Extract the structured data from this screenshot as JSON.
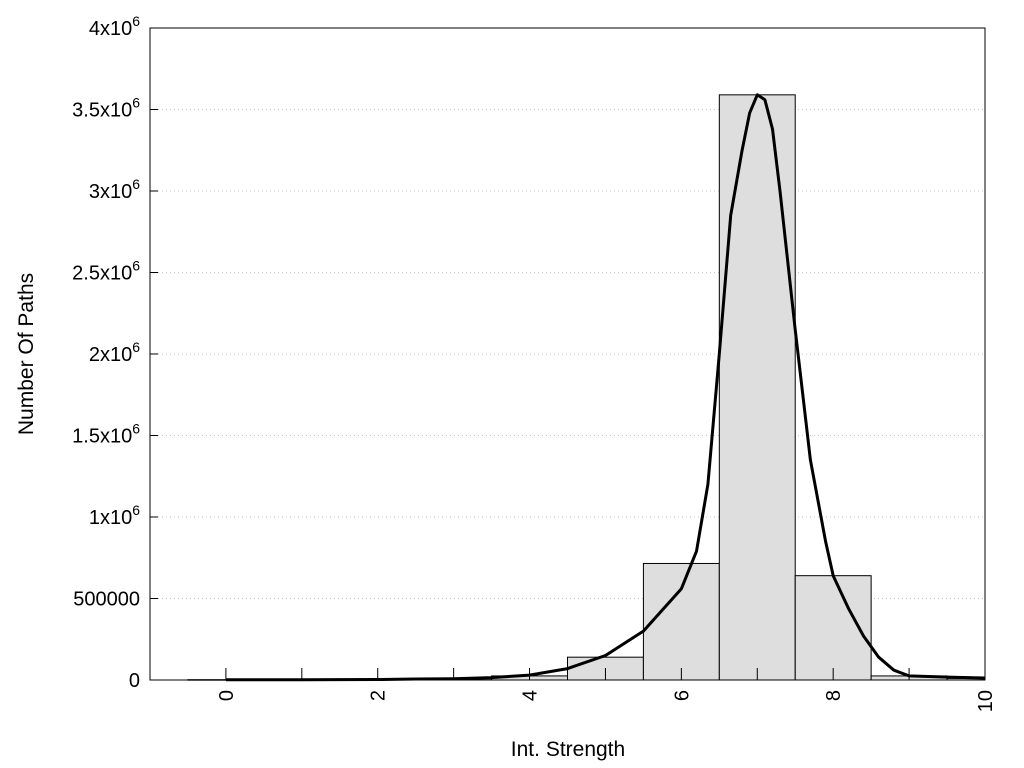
{
  "chart_data": {
    "type": "bar",
    "title": "",
    "xlabel": "Int. Strength",
    "ylabel": "Number Of Paths",
    "xlim": [
      -1,
      10
    ],
    "ylim": [
      0,
      4000000
    ],
    "grid": "horizontal dotted",
    "legend": "none",
    "x_ticks": [
      0,
      2,
      4,
      6,
      8,
      10
    ],
    "y_ticks": [
      {
        "value": 0,
        "base": "0",
        "exp": ""
      },
      {
        "value": 500000,
        "base": "500000",
        "exp": ""
      },
      {
        "value": 1000000,
        "base": "1x10",
        "exp": "6"
      },
      {
        "value": 1500000,
        "base": "1.5x10",
        "exp": "6"
      },
      {
        "value": 2000000,
        "base": "2x10",
        "exp": "6"
      },
      {
        "value": 2500000,
        "base": "2.5x10",
        "exp": "6"
      },
      {
        "value": 3000000,
        "base": "3x10",
        "exp": "6"
      },
      {
        "value": 3500000,
        "base": "3.5x10",
        "exp": "6"
      },
      {
        "value": 4000000,
        "base": "4x10",
        "exp": "6"
      }
    ],
    "bin_width": 1,
    "bars": [
      {
        "x": 0,
        "y": 2000
      },
      {
        "x": 1,
        "y": 3000
      },
      {
        "x": 2,
        "y": 5000
      },
      {
        "x": 3,
        "y": 8000
      },
      {
        "x": 4,
        "y": 25000
      },
      {
        "x": 5,
        "y": 140000
      },
      {
        "x": 6,
        "y": 715000
      },
      {
        "x": 7,
        "y": 3590000
      },
      {
        "x": 8,
        "y": 640000
      },
      {
        "x": 9,
        "y": 25000
      },
      {
        "x": 10,
        "y": 10000
      }
    ],
    "series": [
      {
        "type": "line",
        "points": [
          [
            0,
            2000
          ],
          [
            1,
            2000
          ],
          [
            2,
            3000
          ],
          [
            2.5,
            6000
          ],
          [
            3,
            8000
          ],
          [
            3.5,
            15000
          ],
          [
            4,
            30000
          ],
          [
            4.5,
            70000
          ],
          [
            5,
            150000
          ],
          [
            5.5,
            300000
          ],
          [
            6,
            560000
          ],
          [
            6.2,
            790000
          ],
          [
            6.35,
            1200000
          ],
          [
            6.5,
            2000000
          ],
          [
            6.65,
            2850000
          ],
          [
            6.8,
            3250000
          ],
          [
            6.9,
            3480000
          ],
          [
            7,
            3590000
          ],
          [
            7.1,
            3560000
          ],
          [
            7.2,
            3380000
          ],
          [
            7.3,
            3000000
          ],
          [
            7.5,
            2150000
          ],
          [
            7.7,
            1350000
          ],
          [
            7.9,
            850000
          ],
          [
            8,
            640000
          ],
          [
            8.2,
            440000
          ],
          [
            8.4,
            270000
          ],
          [
            8.6,
            140000
          ],
          [
            8.8,
            60000
          ],
          [
            9,
            25000
          ],
          [
            9.5,
            18000
          ],
          [
            10,
            12000
          ]
        ]
      }
    ]
  }
}
